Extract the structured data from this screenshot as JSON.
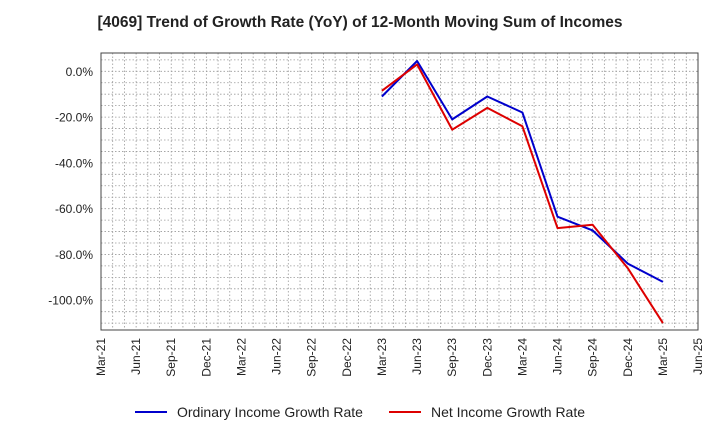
{
  "chart_data": {
    "type": "line",
    "title": "[4069]  Trend of Growth Rate (YoY) of 12-Month Moving Sum of Incomes",
    "xlabel": "",
    "ylabel": "",
    "x_ticks": [
      "Mar-21",
      "Jun-21",
      "Sep-21",
      "Dec-21",
      "Mar-22",
      "Jun-22",
      "Sep-22",
      "Dec-22",
      "Mar-23",
      "Jun-23",
      "Sep-23",
      "Dec-23",
      "Mar-24",
      "Jun-24",
      "Sep-24",
      "Dec-24",
      "Mar-25",
      "Jun-25"
    ],
    "y_ticks": [
      0,
      -20,
      -40,
      -60,
      -80,
      -100
    ],
    "y_tick_labels": [
      "0.0%",
      "-20.0%",
      "-40.0%",
      "-60.0%",
      "-80.0%",
      "-100.0%"
    ],
    "ylim": [
      -113,
      8
    ],
    "grid": true,
    "legend_position": "bottom",
    "x": [
      "Mar-23",
      "Jun-23",
      "Sep-23",
      "Dec-23",
      "Mar-24",
      "Jun-24",
      "Sep-24",
      "Dec-24",
      "Mar-25"
    ],
    "series": [
      {
        "name": "Ordinary Income Growth Rate",
        "color": "#0000cc",
        "values": [
          -11,
          4.5,
          -21,
          -11,
          -18,
          -63.5,
          -69.5,
          -84,
          -92
        ]
      },
      {
        "name": "Net Income Growth Rate",
        "color": "#dd0000",
        "values": [
          -8.5,
          3,
          -25.5,
          -16,
          -24,
          -68.5,
          -67,
          -86,
          -110
        ]
      }
    ]
  }
}
